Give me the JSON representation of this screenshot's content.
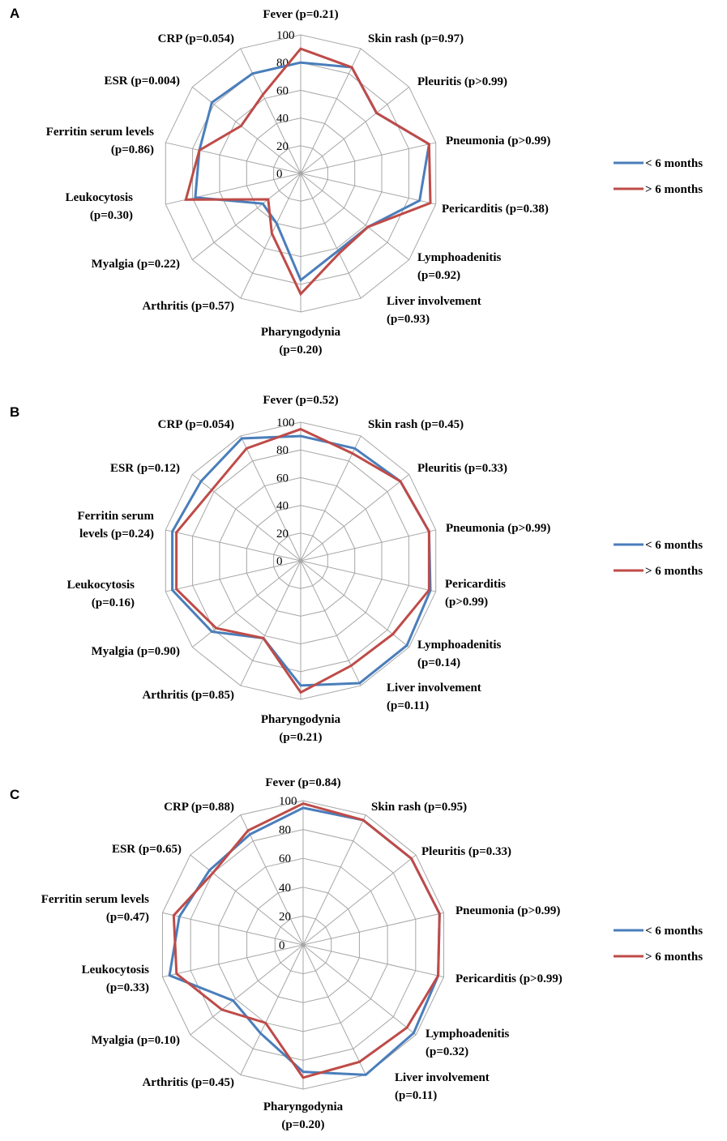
{
  "colors": {
    "under6": "#4a7ebb",
    "over6": "#be4b48",
    "grid": "#a6a6a6"
  },
  "tick_values": [
    "0",
    "20",
    "40",
    "60",
    "80",
    "100"
  ],
  "chart_data": [
    {
      "type": "radar",
      "panel": "A",
      "rmax": 100,
      "grid_step": 20,
      "legend_position": "right",
      "categories": [
        [
          "Fever (p=0.21)"
        ],
        [
          "Skin rash (p=0.97)"
        ],
        [
          "Pleuritis (p>0.99)"
        ],
        [
          "Pneumonia (p>0.99)"
        ],
        [
          "Pericarditis (p=0.38)"
        ],
        [
          "Lymphoadenitis",
          "(p=0.92)"
        ],
        [
          "Liver involvement",
          "(p=0.93)"
        ],
        [
          "Pharyngodynia",
          "(p=0.20)"
        ],
        [
          "Arthritis (p=0.57)"
        ],
        [
          "Myalgia (p=0.22)"
        ],
        [
          "Leukocytosis",
          "(p=0.30)"
        ],
        [
          "Ferritin serum levels",
          "(p=0.86)"
        ],
        [
          "ESR (p=0.004)"
        ],
        [
          "CRP (p=0.054)"
        ]
      ],
      "series": [
        {
          "name": "< 6 months",
          "values": [
            80,
            85,
            70,
            95,
            88,
            62,
            62,
            77,
            40,
            35,
            78,
            75,
            82,
            80
          ]
        },
        {
          "name": "> 6 months",
          "values": [
            90,
            85,
            70,
            95,
            96,
            62,
            64,
            87,
            48,
            30,
            85,
            75,
            55,
            63
          ]
        }
      ]
    },
    {
      "type": "radar",
      "panel": "B",
      "rmax": 100,
      "grid_step": 20,
      "legend_position": "right",
      "categories": [
        [
          "Fever (p=0.52)"
        ],
        [
          "Skin rash (p=0.45)"
        ],
        [
          "Pleuritis (p=0.33)"
        ],
        [
          "Pneumonia (p>0.99)"
        ],
        [
          "Pericarditis",
          "(p>0.99)"
        ],
        [
          "Lymphoadenitis",
          "(p=0.14)"
        ],
        [
          "Liver involvement",
          "(p=0.11)"
        ],
        [
          "Pharyngodynia",
          "(p=0.21)"
        ],
        [
          "Arthritis (p=0.85)"
        ],
        [
          "Myalgia (p=0.90)"
        ],
        [
          "Leukocytosis",
          "(p=0.16)"
        ],
        [
          "Ferritin serum",
          "levels (p=0.24)"
        ],
        [
          "ESR (p=0.12)"
        ],
        [
          "CRP (p=0.054)"
        ]
      ],
      "series": [
        {
          "name": "< 6 months",
          "values": [
            90,
            90,
            92,
            95,
            96,
            98,
            98,
            90,
            62,
            82,
            95,
            95,
            92,
            98
          ]
        },
        {
          "name": "> 6 months",
          "values": [
            95,
            86,
            92,
            95,
            95,
            85,
            84,
            95,
            62,
            78,
            92,
            92,
            82,
            90
          ]
        }
      ]
    },
    {
      "type": "radar",
      "panel": "C",
      "rmax": 100,
      "grid_step": 20,
      "legend_position": "right",
      "categories": [
        [
          "Fever (p=0.84)"
        ],
        [
          "Skin rash (p=0.95)"
        ],
        [
          "Pleuritis (p=0.33)"
        ],
        [
          "Pneumonia (p>0.99)"
        ],
        [
          "Pericarditis (p>0.99)"
        ],
        [
          "Lymphoadenitis",
          "(p=0.32)"
        ],
        [
          "Liver involvement",
          "(p=0.11)"
        ],
        [
          "Pharyngodynia",
          "(p=0.20)"
        ],
        [
          "Arthritis (p=0.45)"
        ],
        [
          "Myalgia (p=0.10)"
        ],
        [
          "Leukocytosis",
          "(p=0.33)"
        ],
        [
          "Ferritin serum levels",
          "(p=0.47)"
        ],
        [
          "ESR (p=0.65)"
        ],
        [
          "CRP (p=0.88)"
        ]
      ],
      "series": [
        {
          "name": "< 6 months",
          "values": [
            95,
            96,
            96,
            97,
            96,
            98,
            100,
            88,
            68,
            62,
            95,
            88,
            83,
            85
          ]
        },
        {
          "name": "> 6 months",
          "values": [
            98,
            96,
            96,
            97,
            96,
            92,
            90,
            92,
            60,
            72,
            90,
            92,
            80,
            88
          ]
        }
      ]
    }
  ]
}
